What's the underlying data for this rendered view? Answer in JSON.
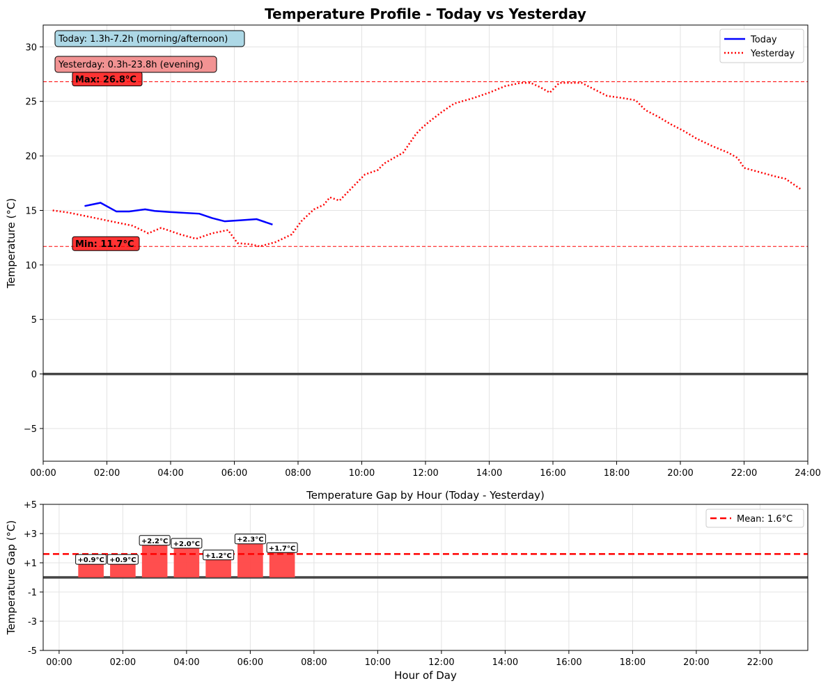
{
  "chart_data": [
    {
      "type": "line",
      "title": "Temperature Profile - Today vs Yesterday",
      "xlabel": "",
      "ylabel": "Temperature (°C)",
      "xlim": [
        0,
        24
      ],
      "ylim": [
        -8,
        32
      ],
      "x_ticks": [
        "00:00",
        "02:00",
        "04:00",
        "06:00",
        "08:00",
        "10:00",
        "12:00",
        "14:00",
        "16:00",
        "18:00",
        "20:00",
        "22:00",
        "24:00"
      ],
      "y_ticks": [
        "−5",
        "0",
        "5",
        "10",
        "15",
        "20",
        "25",
        "30"
      ],
      "grid": true,
      "legend": {
        "placement": "top-right",
        "entries": [
          "Today",
          "Yesterday"
        ]
      },
      "colors": {
        "today": "#0000ff",
        "yesterday": "#ff0000",
        "zero_line": "#444444"
      },
      "series": [
        {
          "name": "Today",
          "style": "solid",
          "x": [
            1.3,
            1.8,
            2.3,
            2.7,
            3.2,
            3.5,
            4.0,
            4.9,
            5.3,
            5.7,
            6.2,
            6.7,
            7.2
          ],
          "y": [
            15.4,
            15.7,
            14.9,
            14.9,
            15.1,
            14.95,
            14.85,
            14.7,
            14.3,
            14.0,
            14.1,
            14.2,
            13.7
          ]
        },
        {
          "name": "Yesterday",
          "style": "dotted",
          "x": [
            0.3,
            0.8,
            1.3,
            1.8,
            2.3,
            2.8,
            3.3,
            3.7,
            4.3,
            4.8,
            5.3,
            5.8,
            6.1,
            6.5,
            6.8,
            7.3,
            7.8,
            8.1,
            8.5,
            8.8,
            9.0,
            9.3,
            9.7,
            10.1,
            10.5,
            10.7,
            11.0,
            11.3,
            11.7,
            11.9,
            12.1,
            12.5,
            12.9,
            13.5,
            14.0,
            14.5,
            15.0,
            15.3,
            15.6,
            15.9,
            16.2,
            16.5,
            16.9,
            17.3,
            17.7,
            18.2,
            18.6,
            18.9,
            19.3,
            19.7,
            20.1,
            20.5,
            21.0,
            21.5,
            21.8,
            22.0,
            22.5,
            23.0,
            23.3,
            23.8
          ],
          "y": [
            15.0,
            14.8,
            14.5,
            14.2,
            13.9,
            13.6,
            12.9,
            13.4,
            12.8,
            12.4,
            12.9,
            13.2,
            12.0,
            11.9,
            11.7,
            12.1,
            12.8,
            14.0,
            15.1,
            15.5,
            16.2,
            15.9,
            17.1,
            18.3,
            18.7,
            19.3,
            19.8,
            20.3,
            22.0,
            22.6,
            23.1,
            24.0,
            24.8,
            25.3,
            25.8,
            26.4,
            26.7,
            26.7,
            26.3,
            25.8,
            26.7,
            26.7,
            26.7,
            26.1,
            25.5,
            25.3,
            25.1,
            24.2,
            23.6,
            22.9,
            22.3,
            21.6,
            20.9,
            20.3,
            19.8,
            18.9,
            18.5,
            18.1,
            17.9,
            16.9
          ]
        }
      ],
      "reference_lines": [
        {
          "label": "Max: 26.8°C",
          "y": 26.8,
          "color": "#ff0000"
        },
        {
          "label": "Min: 11.7°C",
          "y": 11.7,
          "color": "#ff0000"
        }
      ],
      "annotations": [
        {
          "text": "Today: 1.3h-7.2h (morning/afternoon)",
          "color": "#add8e6"
        },
        {
          "text": "Yesterday: 0.3h-23.8h (evening)",
          "color": "#f08080"
        }
      ]
    },
    {
      "type": "bar",
      "title": "Temperature Gap by Hour (Today - Yesterday)",
      "xlabel": "Hour of Day",
      "ylabel": "Temperature Gap (°C)",
      "xlim": [
        -0.5,
        23.5
      ],
      "ylim": [
        -5,
        5
      ],
      "x_ticks": [
        "00:00",
        "02:00",
        "04:00",
        "06:00",
        "08:00",
        "10:00",
        "12:00",
        "14:00",
        "16:00",
        "18:00",
        "20:00",
        "22:00"
      ],
      "y_ticks": [
        "-5",
        "-3",
        "-1",
        "+1",
        "+3",
        "+5"
      ],
      "grid": true,
      "legend": {
        "placement": "top-right",
        "entries": [
          "Mean: 1.6°C"
        ]
      },
      "colors": {
        "bar": "#ff4444",
        "mean_line": "#ff0000"
      },
      "hours": [
        1,
        2,
        3,
        4,
        5,
        6,
        7
      ],
      "values": [
        0.9,
        0.9,
        2.2,
        2.0,
        1.2,
        2.3,
        1.7
      ],
      "value_labels": [
        "+0.9°C",
        "+0.9°C",
        "+2.2°C",
        "+2.0°C",
        "+1.2°C",
        "+2.3°C",
        "+1.7°C"
      ],
      "mean": 1.6
    }
  ]
}
